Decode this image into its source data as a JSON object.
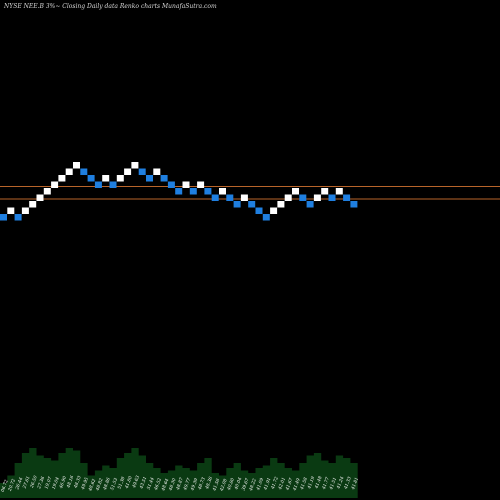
{
  "chart_data": {
    "type": "renko",
    "title": "NYSE NEE.B  3%~   Closing Daily data  Renko  charts MunafaSutra.com",
    "up_color": "#ffffff",
    "down_color": "#1f7fe0",
    "line_color": "#b8642a",
    "volume_color": "#0a3a12",
    "bricks": [
      "down",
      "up",
      "down",
      "up",
      "up",
      "up",
      "up",
      "up",
      "up",
      "up",
      "up",
      "down",
      "down",
      "down",
      "up",
      "down",
      "up",
      "up",
      "up",
      "down",
      "down",
      "up",
      "down",
      "down",
      "down",
      "up",
      "down",
      "up",
      "down",
      "down",
      "up",
      "down",
      "down",
      "up",
      "down",
      "down",
      "down",
      "up",
      "up",
      "up",
      "up",
      "down",
      "down",
      "up",
      "up",
      "down",
      "up",
      "down",
      "down"
    ],
    "x_labels": [
      "06.72",
      "20.72",
      "26.44",
      "27.61",
      "26.50",
      "27.36",
      "19.07",
      "19.04",
      "46.90",
      "48.16",
      "48.33",
      "49.95",
      "48.62",
      "48.82",
      "48.86",
      "51.53",
      "51.38",
      "41.80",
      "49.63",
      "43.51",
      "51.44",
      "46.52",
      "48.64",
      "48.30",
      "48.87",
      "49.77",
      "49.39",
      "48.73",
      "48.36",
      "41.58",
      "42.08",
      "40.80",
      "40.04",
      "39.67",
      "48.22",
      "41.09",
      "41.91",
      "41.72",
      "42.01",
      "41.67",
      "41.49",
      "41.58",
      "41.19",
      "41.48",
      "41.77",
      "41.51",
      "41.24",
      "41.33",
      "41.81"
    ],
    "volume": [
      0.3,
      0.45,
      0.7,
      0.9,
      1.0,
      0.85,
      0.8,
      0.75,
      0.9,
      1.0,
      0.95,
      0.7,
      0.45,
      0.55,
      0.65,
      0.6,
      0.8,
      0.9,
      1.0,
      0.85,
      0.7,
      0.6,
      0.5,
      0.55,
      0.65,
      0.6,
      0.55,
      0.7,
      0.8,
      0.5,
      0.45,
      0.6,
      0.7,
      0.55,
      0.5,
      0.6,
      0.65,
      0.8,
      0.7,
      0.6,
      0.55,
      0.7,
      0.85,
      0.9,
      0.75,
      0.7,
      0.85,
      0.8,
      0.7
    ],
    "reference_lines": 2
  }
}
